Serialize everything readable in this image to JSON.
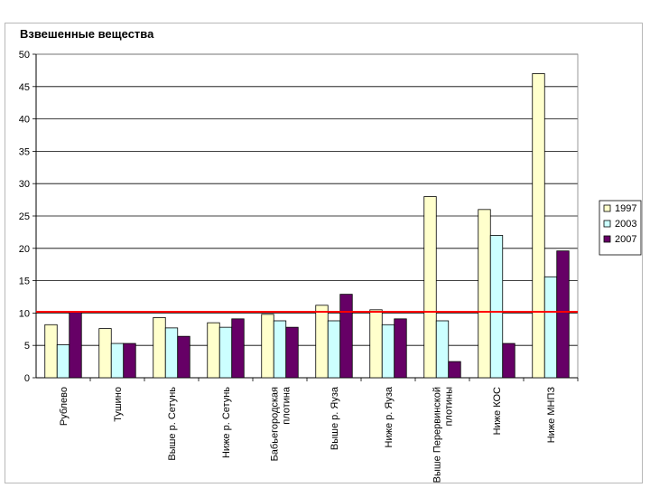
{
  "chart_data": {
    "type": "bar",
    "title": "Взвешенные вещества",
    "xlabel": "",
    "ylabel": "",
    "ylim": [
      0,
      50
    ],
    "yticks": [
      0,
      5,
      10,
      15,
      20,
      25,
      30,
      35,
      40,
      45,
      50
    ],
    "grid": true,
    "legend_position": "right",
    "reference_line": 10.2,
    "categories": [
      [
        "Рублево"
      ],
      [
        "Тушино"
      ],
      [
        "Выше р. Сетунь"
      ],
      [
        "Ниже р. Сетунь"
      ],
      [
        "Бабьегородская",
        "плотина"
      ],
      [
        "Выше р. Яуза"
      ],
      [
        "Ниже р. Яуза"
      ],
      [
        "Выше Перервинской",
        "плотины"
      ],
      [
        "Ниже КОС"
      ],
      [
        "Ниже МНПЗ"
      ]
    ],
    "series": [
      {
        "name": "1997",
        "values": [
          8.2,
          7.6,
          9.3,
          8.5,
          9.8,
          11.2,
          10.5,
          28.0,
          26.0,
          47.0
        ]
      },
      {
        "name": "2003",
        "values": [
          5.1,
          5.3,
          7.7,
          7.8,
          8.8,
          8.8,
          8.2,
          8.8,
          22.0,
          15.6
        ]
      },
      {
        "name": "2007",
        "values": [
          10.1,
          5.3,
          6.4,
          9.1,
          7.8,
          12.9,
          9.1,
          2.5,
          5.3,
          19.6
        ]
      }
    ],
    "colors": {
      "series": [
        "#ffffcc",
        "#ccffff",
        "#660066"
      ],
      "reference_line": "#ff0000",
      "gridline": "#000000",
      "frame": "#b8b8b8"
    }
  }
}
